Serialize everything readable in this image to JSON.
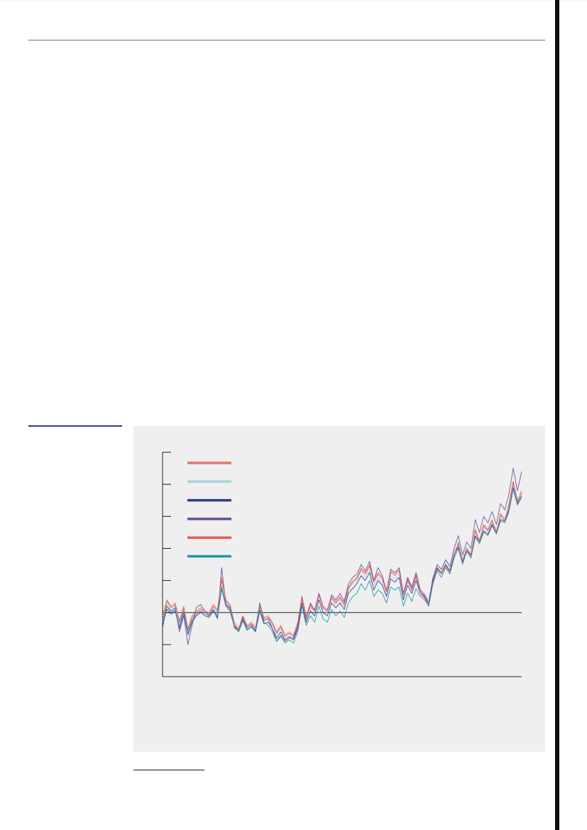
{
  "chart_data": {
    "type": "line",
    "title": "",
    "xlabel": "",
    "ylabel": "",
    "xlim": [
      1850,
      2020
    ],
    "ylim": [
      -0.4,
      1.0
    ],
    "yticks": [
      -0.2,
      0.0,
      0.2,
      0.4,
      0.6,
      0.8,
      1.0
    ],
    "zero_line": true,
    "legend_position": "top-left",
    "x": [
      1850,
      1852,
      1854,
      1856,
      1858,
      1860,
      1862,
      1864,
      1866,
      1868,
      1870,
      1872,
      1874,
      1876,
      1878,
      1880,
      1882,
      1884,
      1886,
      1888,
      1890,
      1892,
      1894,
      1896,
      1898,
      1900,
      1902,
      1904,
      1906,
      1908,
      1910,
      1912,
      1914,
      1916,
      1918,
      1920,
      1922,
      1924,
      1926,
      1928,
      1930,
      1932,
      1934,
      1936,
      1938,
      1940,
      1942,
      1944,
      1946,
      1948,
      1950,
      1952,
      1954,
      1956,
      1958,
      1960,
      1962,
      1964,
      1966,
      1968,
      1970,
      1972,
      1974,
      1976,
      1978,
      1980,
      1982,
      1984,
      1986,
      1988,
      1990,
      1992,
      1994,
      1996,
      1998,
      2000,
      2002,
      2004,
      2006,
      2008,
      2010,
      2012,
      2014,
      2016,
      2018,
      2020
    ],
    "series": [
      {
        "name": "",
        "color": "#e8716c",
        "values": [
          -0.02,
          0.08,
          0.04,
          0.06,
          -0.05,
          0.04,
          -0.1,
          -0.02,
          0.01,
          0.03,
          0.01,
          0.0,
          0.05,
          0.02,
          0.2,
          0.08,
          0.05,
          -0.06,
          -0.1,
          -0.02,
          -0.08,
          -0.06,
          -0.09,
          0.05,
          -0.03,
          -0.02,
          -0.06,
          -0.12,
          -0.08,
          -0.14,
          -0.12,
          -0.14,
          -0.06,
          0.1,
          -0.02,
          0.05,
          0.02,
          0.12,
          0.04,
          0.02,
          0.1,
          0.07,
          0.1,
          0.06,
          0.16,
          0.2,
          0.22,
          0.28,
          0.25,
          0.3,
          0.2,
          0.25,
          0.22,
          0.14,
          0.26,
          0.24,
          0.27,
          0.12,
          0.21,
          0.15,
          0.24,
          0.13,
          0.1,
          0.05,
          0.2,
          0.28,
          0.25,
          0.3,
          0.26,
          0.36,
          0.44,
          0.32,
          0.4,
          0.36,
          0.52,
          0.45,
          0.55,
          0.52,
          0.58,
          0.5,
          0.62,
          0.58,
          0.68,
          0.82,
          0.7,
          0.76
        ]
      },
      {
        "name": "",
        "color": "#a9d2dc",
        "values": [
          -0.06,
          0.05,
          0.02,
          0.04,
          -0.07,
          0.02,
          -0.12,
          -0.04,
          0.0,
          0.02,
          0.0,
          -0.01,
          0.03,
          0.0,
          0.17,
          0.06,
          0.03,
          -0.07,
          -0.11,
          -0.03,
          -0.09,
          -0.07,
          -0.1,
          0.03,
          -0.05,
          -0.04,
          -0.08,
          -0.14,
          -0.1,
          -0.15,
          -0.13,
          -0.15,
          -0.08,
          0.08,
          -0.04,
          0.03,
          0.0,
          0.1,
          0.02,
          0.0,
          0.08,
          0.05,
          0.08,
          0.04,
          0.14,
          0.18,
          0.2,
          0.26,
          0.22,
          0.27,
          0.17,
          0.22,
          0.19,
          0.12,
          0.23,
          0.21,
          0.24,
          0.1,
          0.19,
          0.14,
          0.22,
          0.14,
          0.12,
          0.08,
          0.22,
          0.3,
          0.26,
          0.32,
          0.28,
          0.38,
          0.43,
          0.34,
          0.41,
          0.38,
          0.5,
          0.46,
          0.53,
          0.51,
          0.57,
          0.52,
          0.6,
          0.59,
          0.66,
          0.8,
          0.71,
          0.75
        ]
      },
      {
        "name": "",
        "color": "#2b3a86",
        "values": [
          -0.08,
          0.02,
          -0.01,
          0.01,
          -0.1,
          0.0,
          -0.14,
          -0.06,
          -0.02,
          0.0,
          -0.02,
          -0.03,
          0.01,
          -0.03,
          0.15,
          0.04,
          0.01,
          -0.09,
          -0.12,
          -0.05,
          -0.11,
          -0.09,
          -0.12,
          0.01,
          -0.07,
          -0.06,
          -0.1,
          -0.16,
          -0.12,
          -0.17,
          -0.15,
          -0.17,
          -0.1,
          0.06,
          -0.06,
          0.01,
          -0.02,
          0.08,
          0.0,
          -0.02,
          0.06,
          0.03,
          0.06,
          0.02,
          0.12,
          0.15,
          0.18,
          0.23,
          0.2,
          0.25,
          0.14,
          0.2,
          0.17,
          0.1,
          0.21,
          0.19,
          0.22,
          0.08,
          0.17,
          0.12,
          0.2,
          0.12,
          0.1,
          0.06,
          0.2,
          0.28,
          0.24,
          0.3,
          0.26,
          0.36,
          0.41,
          0.32,
          0.39,
          0.36,
          0.48,
          0.44,
          0.51,
          0.49,
          0.55,
          0.5,
          0.58,
          0.57,
          0.64,
          0.78,
          0.68,
          0.73
        ]
      },
      {
        "name": "",
        "color": "#6a4c9c",
        "values": [
          -0.1,
          0.04,
          0.01,
          0.03,
          -0.12,
          -0.02,
          -0.2,
          -0.08,
          0.03,
          0.05,
          0.01,
          -0.02,
          0.02,
          -0.04,
          0.28,
          0.05,
          0.03,
          -0.08,
          -0.11,
          -0.03,
          -0.09,
          -0.07,
          -0.12,
          0.06,
          -0.05,
          -0.04,
          -0.1,
          -0.18,
          -0.14,
          -0.18,
          -0.16,
          -0.16,
          -0.09,
          0.1,
          -0.04,
          0.06,
          0.01,
          0.12,
          0.03,
          0.01,
          0.11,
          0.08,
          0.12,
          0.07,
          0.18,
          0.22,
          0.24,
          0.3,
          0.26,
          0.32,
          0.2,
          0.28,
          0.23,
          0.13,
          0.27,
          0.25,
          0.28,
          0.12,
          0.22,
          0.16,
          0.25,
          0.14,
          0.11,
          0.06,
          0.22,
          0.3,
          0.27,
          0.33,
          0.29,
          0.4,
          0.48,
          0.36,
          0.44,
          0.4,
          0.58,
          0.5,
          0.6,
          0.56,
          0.63,
          0.55,
          0.68,
          0.64,
          0.74,
          0.9,
          0.76,
          0.88
        ]
      },
      {
        "name": "",
        "color": "#e85a5a",
        "values": [
          -0.04,
          0.07,
          0.03,
          0.05,
          -0.06,
          0.03,
          -0.11,
          -0.03,
          0.0,
          0.02,
          0.0,
          -0.01,
          0.04,
          0.01,
          0.22,
          0.07,
          0.04,
          -0.1,
          -0.11,
          -0.02,
          -0.09,
          -0.07,
          -0.1,
          0.04,
          -0.04,
          -0.03,
          -0.07,
          -0.13,
          -0.09,
          -0.15,
          -0.13,
          -0.15,
          -0.07,
          0.09,
          -0.03,
          0.04,
          0.01,
          0.11,
          0.03,
          0.01,
          0.09,
          0.06,
          0.09,
          0.05,
          0.15,
          0.19,
          0.21,
          0.27,
          0.24,
          0.29,
          0.19,
          0.24,
          0.21,
          0.13,
          0.25,
          0.23,
          0.26,
          0.11,
          0.2,
          0.14,
          0.23,
          0.12,
          0.09,
          0.04,
          0.19,
          0.27,
          0.24,
          0.29,
          0.25,
          0.35,
          0.43,
          0.31,
          0.39,
          0.35,
          0.51,
          0.44,
          0.54,
          0.51,
          0.57,
          0.49,
          0.61,
          0.57,
          0.67,
          0.81,
          0.69,
          0.75
        ]
      },
      {
        "name": "",
        "color": "#1e97a8",
        "values": [
          -0.06,
          0.04,
          0.0,
          0.02,
          -0.09,
          0.01,
          -0.13,
          -0.05,
          -0.01,
          0.01,
          -0.01,
          -0.02,
          0.02,
          -0.02,
          0.16,
          0.05,
          0.02,
          -0.08,
          -0.12,
          -0.04,
          -0.1,
          -0.08,
          -0.11,
          0.02,
          -0.06,
          -0.08,
          -0.12,
          -0.18,
          -0.15,
          -0.19,
          -0.17,
          -0.19,
          -0.12,
          0.04,
          -0.08,
          -0.02,
          -0.06,
          0.04,
          -0.04,
          -0.06,
          0.02,
          -0.02,
          0.01,
          -0.03,
          0.06,
          0.1,
          0.12,
          0.18,
          0.14,
          0.2,
          0.1,
          0.14,
          0.12,
          0.06,
          0.16,
          0.14,
          0.16,
          0.04,
          0.12,
          0.07,
          0.15,
          0.1,
          0.08,
          0.04,
          0.18,
          0.26,
          0.22,
          0.28,
          0.24,
          0.34,
          0.4,
          0.3,
          0.38,
          0.34,
          0.47,
          0.43,
          0.5,
          0.48,
          0.54,
          0.49,
          0.57,
          0.56,
          0.63,
          0.77,
          0.67,
          0.72
        ]
      }
    ]
  }
}
